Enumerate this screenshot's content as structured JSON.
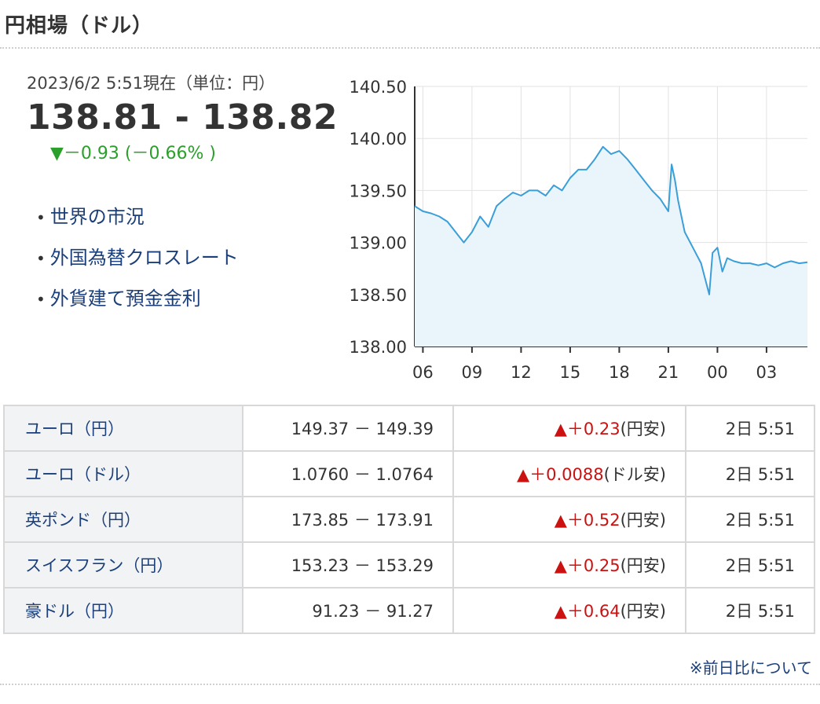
{
  "header": {
    "title": "円相場（ドル）"
  },
  "summary": {
    "timestamp": "2023/6/2 5:51現在（単位：円）",
    "rate": "138.81 - 138.82",
    "change": "▼－0.93 (－0.66% )"
  },
  "links": [
    {
      "label": "世界の市況"
    },
    {
      "label": "外国為替クロスレート"
    },
    {
      "label": "外貨建て預金金利"
    }
  ],
  "chart_data": {
    "type": "area",
    "x_tick_labels": [
      "06",
      "09",
      "12",
      "15",
      "18",
      "21",
      "00",
      "03"
    ],
    "y_tick_labels": [
      "140.50",
      "140.00",
      "139.50",
      "139.00",
      "138.50",
      "138.00"
    ],
    "ylim": [
      138.0,
      140.5
    ],
    "grid": true,
    "line_color": "#3a9fd9",
    "fill_color": "#eaf4fb",
    "hours_axis": [
      5.5,
      29.5
    ],
    "x": [
      5.5,
      6.0,
      6.5,
      7.0,
      7.5,
      8.0,
      8.5,
      9.0,
      9.5,
      10.0,
      10.5,
      11.0,
      11.5,
      12.0,
      12.5,
      13.0,
      13.5,
      14.0,
      14.5,
      15.0,
      15.5,
      16.0,
      16.5,
      17.0,
      17.5,
      18.0,
      18.5,
      19.0,
      19.5,
      20.0,
      20.5,
      21.0,
      21.2,
      21.4,
      21.6,
      22.0,
      22.5,
      23.0,
      23.5,
      23.7,
      24.0,
      24.3,
      24.6,
      25.0,
      25.5,
      26.0,
      26.5,
      27.0,
      27.5,
      28.0,
      28.5,
      29.0,
      29.5
    ],
    "y": [
      139.35,
      139.3,
      139.28,
      139.25,
      139.2,
      139.1,
      139.0,
      139.1,
      139.25,
      139.15,
      139.35,
      139.42,
      139.48,
      139.45,
      139.5,
      139.5,
      139.45,
      139.55,
      139.5,
      139.62,
      139.7,
      139.7,
      139.8,
      139.92,
      139.85,
      139.88,
      139.8,
      139.7,
      139.6,
      139.5,
      139.42,
      139.3,
      139.75,
      139.6,
      139.4,
      139.1,
      138.95,
      138.8,
      138.5,
      138.9,
      138.95,
      138.72,
      138.85,
      138.82,
      138.8,
      138.8,
      138.78,
      138.8,
      138.76,
      138.8,
      138.82,
      138.8,
      138.81
    ]
  },
  "table": {
    "rows": [
      {
        "name": "ユーロ（円）",
        "bidask": "149.37 － 149.39",
        "change": "▲＋0.23",
        "unit": "(円安)",
        "time": "2日 5:51"
      },
      {
        "name": "ユーロ（ドル）",
        "bidask": "1.0760 － 1.0764",
        "change": "▲＋0.0088",
        "unit": "(ドル安)",
        "time": "2日 5:51"
      },
      {
        "name": "英ポンド（円）",
        "bidask": "173.85 － 173.91",
        "change": "▲＋0.52",
        "unit": "(円安)",
        "time": "2日 5:51"
      },
      {
        "name": "スイスフラン（円）",
        "bidask": "153.23 － 153.29",
        "change": "▲＋0.25",
        "unit": "(円安)",
        "time": "2日 5:51"
      },
      {
        "name": "豪ドル（円）",
        "bidask": "91.23 － 91.27",
        "change": "▲＋0.64",
        "unit": "(円安)",
        "time": "2日 5:51"
      }
    ]
  },
  "note": "※前日比について"
}
